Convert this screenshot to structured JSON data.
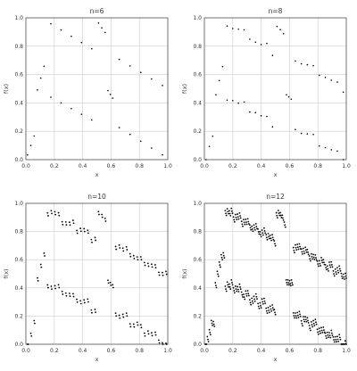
{
  "chart_data": [
    {
      "type": "scatter",
      "title": "n=6",
      "n": 6,
      "xlabel": "x",
      "ylabel": "f(x)",
      "xlim": [
        0,
        1
      ],
      "ylim": [
        0,
        1
      ],
      "xticks": [
        "0.0",
        "0.2",
        "0.4",
        "0.6",
        "0.8",
        "1.0"
      ],
      "yticks": [
        "0.0",
        "0.2",
        "0.4",
        "0.6",
        "0.8",
        "1.0"
      ],
      "grid": true,
      "point_color": "#000000"
    },
    {
      "type": "scatter",
      "title": "n=8",
      "n": 8,
      "xlabel": "x",
      "ylabel": "f(x)",
      "xlim": [
        0,
        1
      ],
      "ylim": [
        0,
        1
      ],
      "xticks": [
        "0.0",
        "0.2",
        "0.4",
        "0.6",
        "0.8",
        "1.0"
      ],
      "yticks": [
        "0.0",
        "0.2",
        "0.4",
        "0.6",
        "0.8",
        "1.0"
      ],
      "grid": true,
      "point_color": "#000000"
    },
    {
      "type": "scatter",
      "title": "n=10",
      "n": 10,
      "xlabel": "x",
      "ylabel": "f(x)",
      "xlim": [
        0,
        1
      ],
      "ylim": [
        0,
        1
      ],
      "xticks": [
        "0.0",
        "0.2",
        "0.4",
        "0.6",
        "0.8",
        "1.0"
      ],
      "yticks": [
        "0.0",
        "0.2",
        "0.4",
        "0.6",
        "0.8",
        "1.0"
      ],
      "grid": true,
      "point_color": "#000000"
    },
    {
      "type": "scatter",
      "title": "n=12",
      "n": 12,
      "xlabel": "x",
      "ylabel": "f(x)",
      "xlim": [
        0,
        1
      ],
      "ylim": [
        0,
        1
      ],
      "xticks": [
        "0.0",
        "0.2",
        "0.4",
        "0.6",
        "0.8",
        "1.0"
      ],
      "yticks": [
        "0.0",
        "0.2",
        "0.4",
        "0.6",
        "0.8",
        "1.0"
      ],
      "grid": true,
      "point_color": "#000000"
    }
  ],
  "colors": {
    "grid": "#cccccc",
    "axes": "#555555",
    "background": "#ffffff"
  }
}
